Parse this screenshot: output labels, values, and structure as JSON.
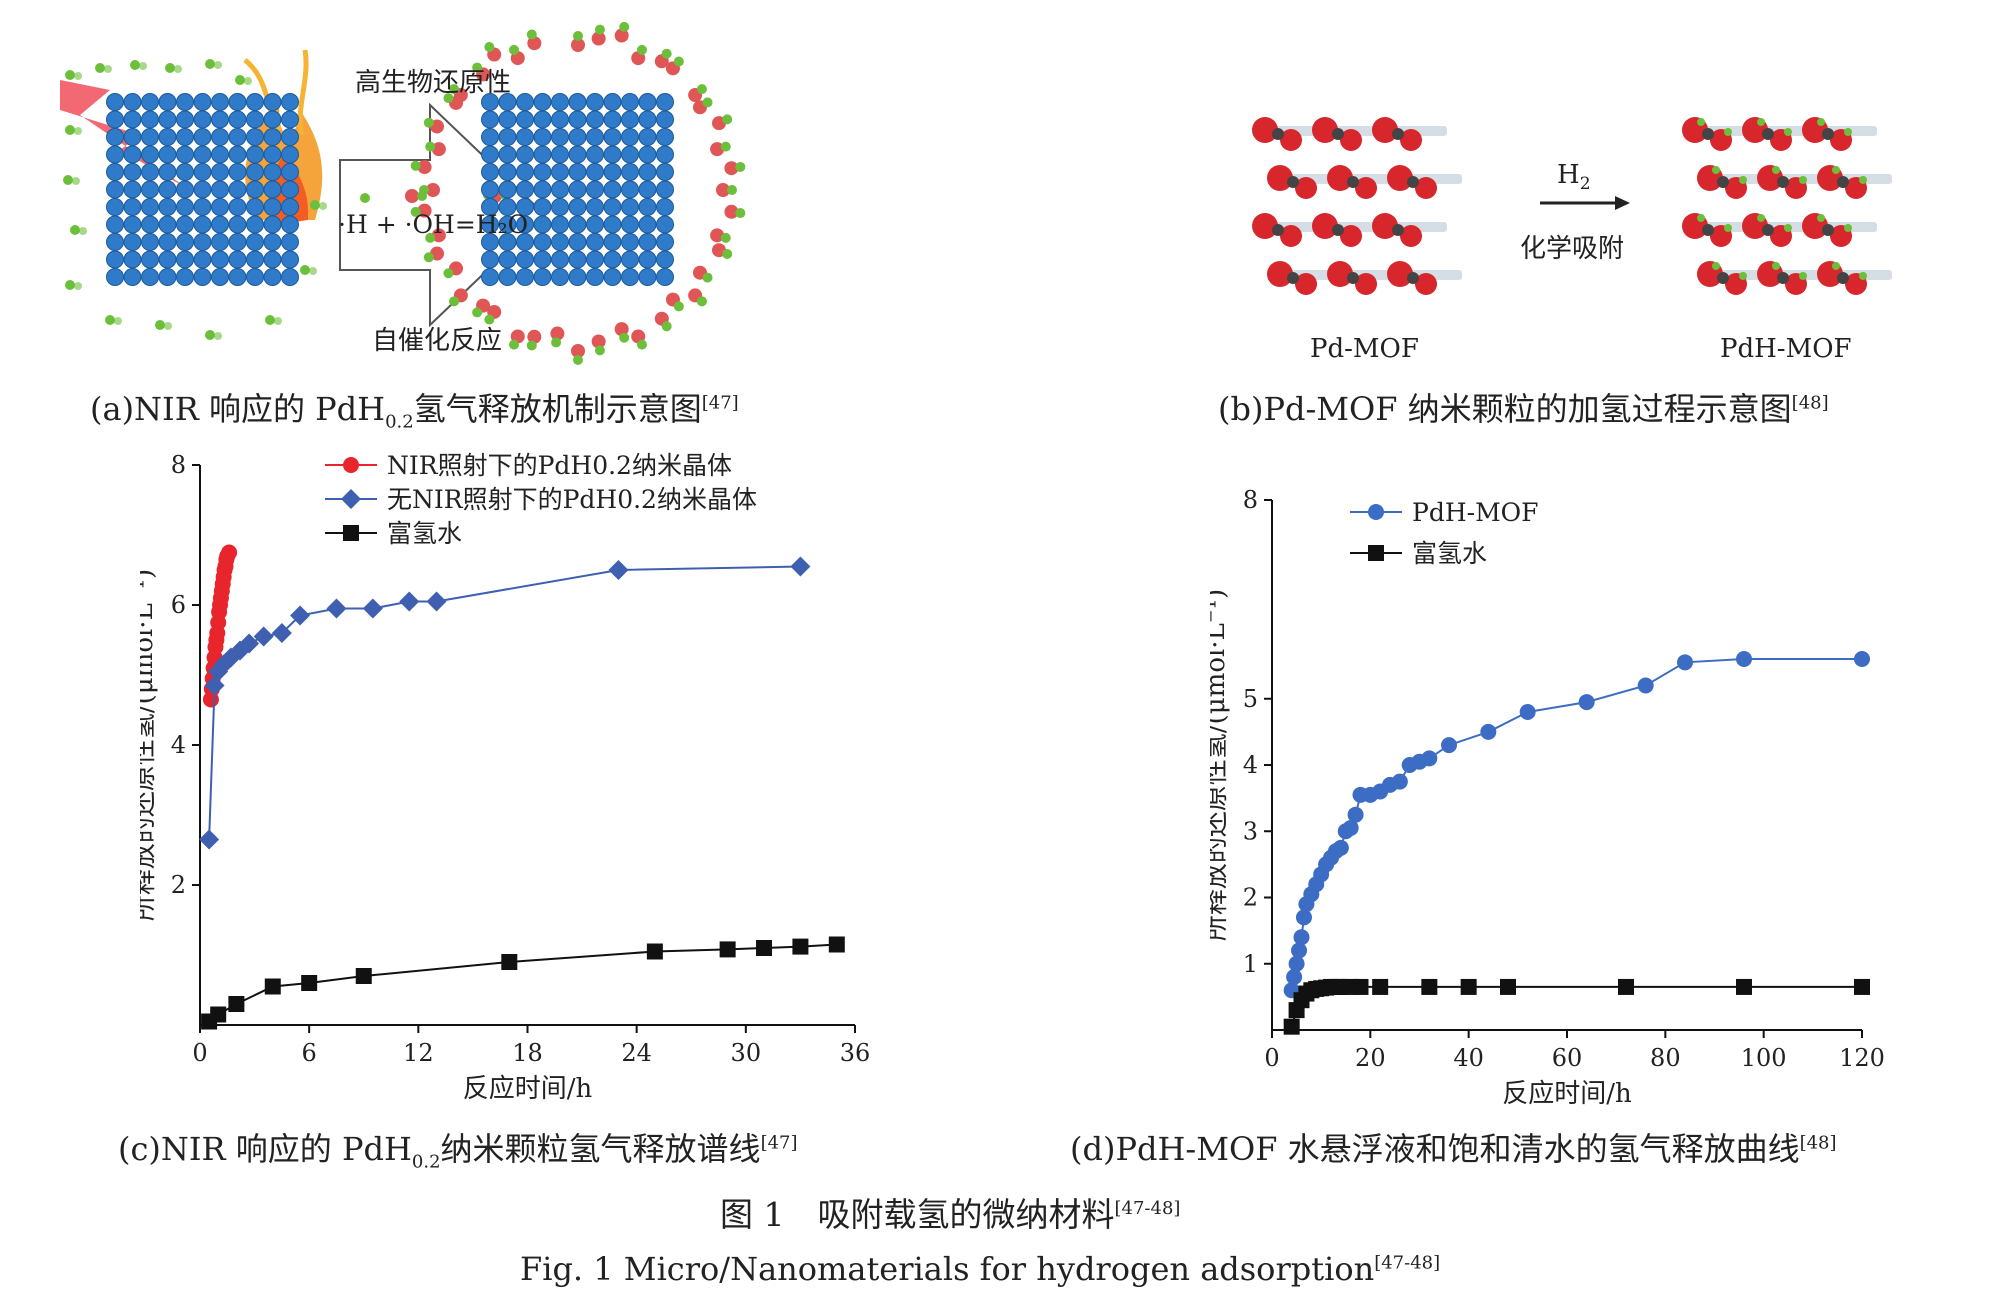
{
  "panel_a": {
    "top_label": "高生物还原性",
    "equation": "·H + ·OH=H₂O",
    "bottom_label": "自催化反应",
    "caption_main": "(a)NIR 响应的 PdH",
    "caption_sub": "0.2",
    "caption_rest": "氢气释放机制示意图",
    "caption_ref": "[47]"
  },
  "panel_b": {
    "arrow_top": "H",
    "arrow_top_sub": "2",
    "arrow_bottom": "化学吸附",
    "left_label": "Pd-MOF",
    "right_label": "PdH-MOF",
    "caption_main": "(b)Pd-MOF 纳米颗粒的加氢过程示意图",
    "caption_ref": "[48]"
  },
  "panel_c": {
    "caption_main": "(c)NIR 响应的 PdH",
    "caption_sub": "0.2",
    "caption_rest": "纳米颗粒氢气释放谱线",
    "caption_ref": "[47]"
  },
  "panel_d": {
    "caption_main": "(d)PdH-MOF 水悬浮液和饱和清水的氢气释放曲线",
    "caption_ref": "[48]"
  },
  "figure_caption_cn": "图 1　吸附载氢的微纳材料",
  "figure_caption_cn_ref": "[47-48]",
  "figure_caption_en": "Fig. 1  Micro/Nanomaterials for hydrogen adsorption",
  "figure_caption_en_ref": "[47-48]",
  "chart_data": [
    {
      "type": "scatter",
      "ylabel": "所释放的还原性氢/(μmol·L⁻¹)",
      "xlabel": "反应时间/h",
      "xlim": [
        0,
        36
      ],
      "ylim": [
        0,
        8
      ],
      "xticks": [
        0,
        6,
        12,
        18,
        24,
        30,
        36
      ],
      "yticks": [
        2,
        4,
        6,
        8
      ],
      "legend_position": "top-center",
      "series": [
        {
          "name": "NIR照射下的PdH0.2纳米晶体",
          "color": "#e8242c",
          "marker": "circle",
          "x": [
            0.6,
            0.65,
            0.7,
            0.75,
            0.8,
            0.85,
            0.9,
            0.95,
            1.0,
            1.05,
            1.1,
            1.15,
            1.2,
            1.25,
            1.3,
            1.35,
            1.4,
            1.45,
            1.5,
            1.6
          ],
          "y": [
            4.65,
            4.8,
            4.95,
            5.1,
            5.25,
            5.4,
            5.5,
            5.6,
            5.75,
            5.9,
            6.0,
            6.1,
            6.2,
            6.3,
            6.4,
            6.5,
            6.55,
            6.65,
            6.7,
            6.75
          ]
        },
        {
          "name": "无NIR照射下的PdH0.2纳米晶体",
          "color": "#3f5fb0",
          "marker": "diamond",
          "x": [
            0.5,
            0.8,
            1.0,
            1.3,
            1.7,
            2.2,
            2.7,
            3.5,
            4.5,
            5.5,
            7.5,
            9.5,
            11.5,
            13.0,
            23.0,
            33.0
          ],
          "y": [
            2.65,
            4.85,
            5.05,
            5.15,
            5.25,
            5.35,
            5.45,
            5.55,
            5.6,
            5.85,
            5.95,
            5.95,
            6.05,
            6.05,
            6.5,
            6.55
          ]
        },
        {
          "name": "富氢水",
          "color": "#111111",
          "marker": "square",
          "x": [
            0.5,
            1.0,
            2.0,
            4.0,
            6.0,
            9.0,
            17.0,
            25.0,
            29.0,
            31.0,
            33.0,
            35.0
          ],
          "y": [
            0.05,
            0.15,
            0.3,
            0.55,
            0.6,
            0.7,
            0.9,
            1.05,
            1.08,
            1.1,
            1.12,
            1.15
          ]
        }
      ]
    },
    {
      "type": "scatter",
      "ylabel": "所释放的还原性氢/(μmol·L⁻¹)",
      "xlabel": "反应时间/h",
      "xlim": [
        0,
        120
      ],
      "ylim": [
        0,
        8
      ],
      "xticks": [
        0,
        20,
        40,
        60,
        80,
        100,
        120
      ],
      "yticks": [
        1,
        2,
        3,
        4,
        5,
        8
      ],
      "legend_position": "top-left",
      "series": [
        {
          "name": "PdH-MOF",
          "color": "#3d6cc4",
          "marker": "circle",
          "x": [
            4,
            4.5,
            5,
            5.5,
            6,
            6.5,
            7,
            8,
            9,
            10,
            11,
            12,
            13,
            14,
            15,
            16,
            17,
            18,
            20,
            22,
            24,
            26,
            28,
            30,
            32,
            36,
            44,
            52,
            64,
            76,
            84,
            96,
            120
          ],
          "y": [
            0.6,
            0.8,
            1.0,
            1.2,
            1.4,
            1.7,
            1.9,
            2.05,
            2.2,
            2.35,
            2.5,
            2.6,
            2.7,
            2.75,
            3.0,
            3.05,
            3.25,
            3.55,
            3.55,
            3.6,
            3.7,
            3.75,
            4.0,
            4.05,
            4.1,
            4.3,
            4.5,
            4.8,
            4.95,
            5.2,
            5.55,
            5.6,
            5.6
          ]
        },
        {
          "name": "富氢水",
          "color": "#111111",
          "marker": "square",
          "x": [
            4,
            5,
            6,
            7,
            8,
            9,
            10,
            11,
            12,
            13,
            14,
            16,
            18,
            22,
            32,
            40,
            48,
            72,
            96,
            120
          ],
          "y": [
            0.05,
            0.3,
            0.45,
            0.55,
            0.6,
            0.62,
            0.63,
            0.64,
            0.65,
            0.65,
            0.65,
            0.65,
            0.65,
            0.65,
            0.65,
            0.65,
            0.65,
            0.65,
            0.65,
            0.65
          ]
        }
      ]
    }
  ],
  "colors": {
    "atom_blue": "#2f7bc9",
    "atom_edge": "#1d5a99",
    "hydrogen_red": "#e05555",
    "hydrogen_green": "#6cbf3a",
    "arrow_grey": "#9a9a9a",
    "mof_red": "#d8262d"
  }
}
